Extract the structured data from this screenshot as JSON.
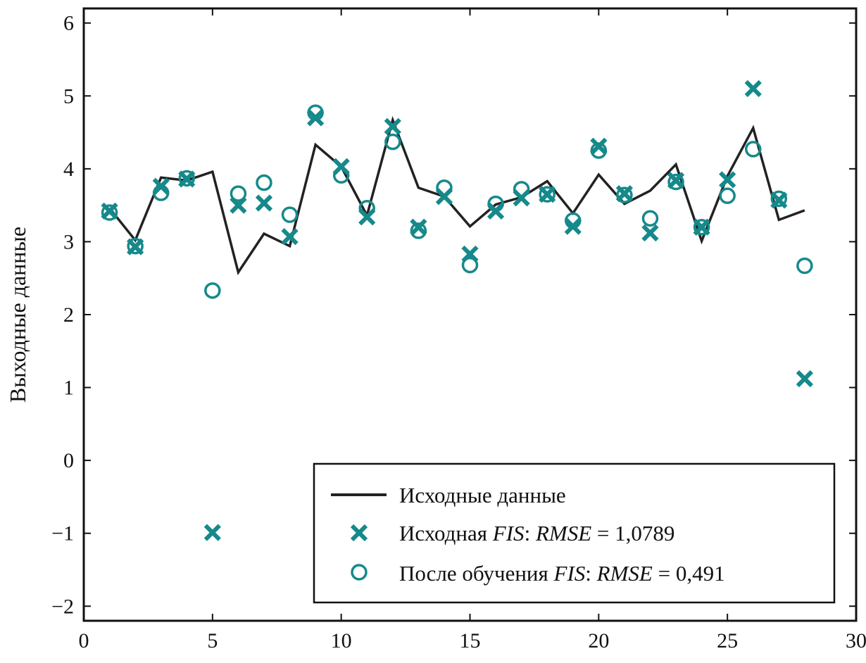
{
  "chart_data": {
    "type": "line",
    "title": "",
    "xlabel": "",
    "ylabel": "Выходные данные",
    "xlim": [
      0,
      30
    ],
    "ylim": [
      -2.2,
      6.2
    ],
    "xticks": [
      0,
      5,
      10,
      15,
      20,
      25,
      30
    ],
    "xtick_labels": [
      "0",
      "5",
      "10",
      "15",
      "20",
      "25",
      "30"
    ],
    "yticks": [
      -2,
      -1,
      0,
      1,
      2,
      3,
      4,
      5,
      6
    ],
    "ytick_labels": [
      "−2",
      "−1",
      "0",
      "1",
      "2",
      "3",
      "4",
      "5",
      "6"
    ],
    "grid": false,
    "legend_position": "bottom-right",
    "x": [
      1,
      2,
      3,
      4,
      5,
      6,
      7,
      8,
      9,
      10,
      11,
      12,
      13,
      14,
      15,
      16,
      17,
      18,
      19,
      20,
      21,
      22,
      23,
      24,
      25,
      26,
      27,
      28
    ],
    "series": [
      {
        "name": "Исходные данные",
        "style": "line",
        "color": "#222222",
        "values": [
          3.46,
          3.02,
          3.88,
          3.84,
          3.96,
          2.58,
          3.11,
          2.94,
          4.33,
          4.03,
          3.36,
          4.67,
          3.74,
          3.62,
          3.21,
          3.51,
          3.61,
          3.83,
          3.39,
          3.92,
          3.52,
          3.7,
          4.06,
          3.01,
          3.9,
          4.56,
          3.3,
          3.43
        ]
      },
      {
        "name": "Исходная FIS: RMSE = 1,0789",
        "style": "marker-x",
        "color": "#16898a",
        "values": [
          3.42,
          2.93,
          3.76,
          3.86,
          -0.99,
          3.5,
          3.53,
          3.07,
          4.7,
          4.03,
          3.34,
          4.58,
          3.2,
          3.62,
          2.83,
          3.42,
          3.6,
          3.65,
          3.21,
          4.31,
          3.66,
          3.12,
          3.84,
          3.2,
          3.85,
          5.1,
          3.57,
          1.12
        ]
      },
      {
        "name": "После обучения FIS: RMSE = 0,491",
        "style": "marker-o",
        "color": "#16898a",
        "values": [
          3.4,
          2.94,
          3.67,
          3.87,
          2.33,
          3.66,
          3.81,
          3.37,
          4.77,
          3.91,
          3.46,
          4.37,
          3.15,
          3.74,
          2.68,
          3.52,
          3.72,
          3.65,
          3.29,
          4.25,
          3.64,
          3.32,
          3.82,
          3.2,
          3.63,
          4.27,
          3.59,
          2.67
        ]
      }
    ],
    "legend": {
      "line_label": "Исходные данные",
      "x_label_plain": "Исходная ",
      "x_label_fis": "FIS",
      "x_label_sep": ": ",
      "x_label_rmse": "RMSE",
      "x_label_value": " = 1,0789",
      "o_label_plain": "После обучения ",
      "o_label_fis": "FIS",
      "o_label_sep": ": ",
      "o_label_rmse": "RMSE",
      "o_label_value": " = 0,491"
    }
  },
  "colors": {
    "line": "#222222",
    "markers": "#16898a",
    "axis": "#111111"
  }
}
